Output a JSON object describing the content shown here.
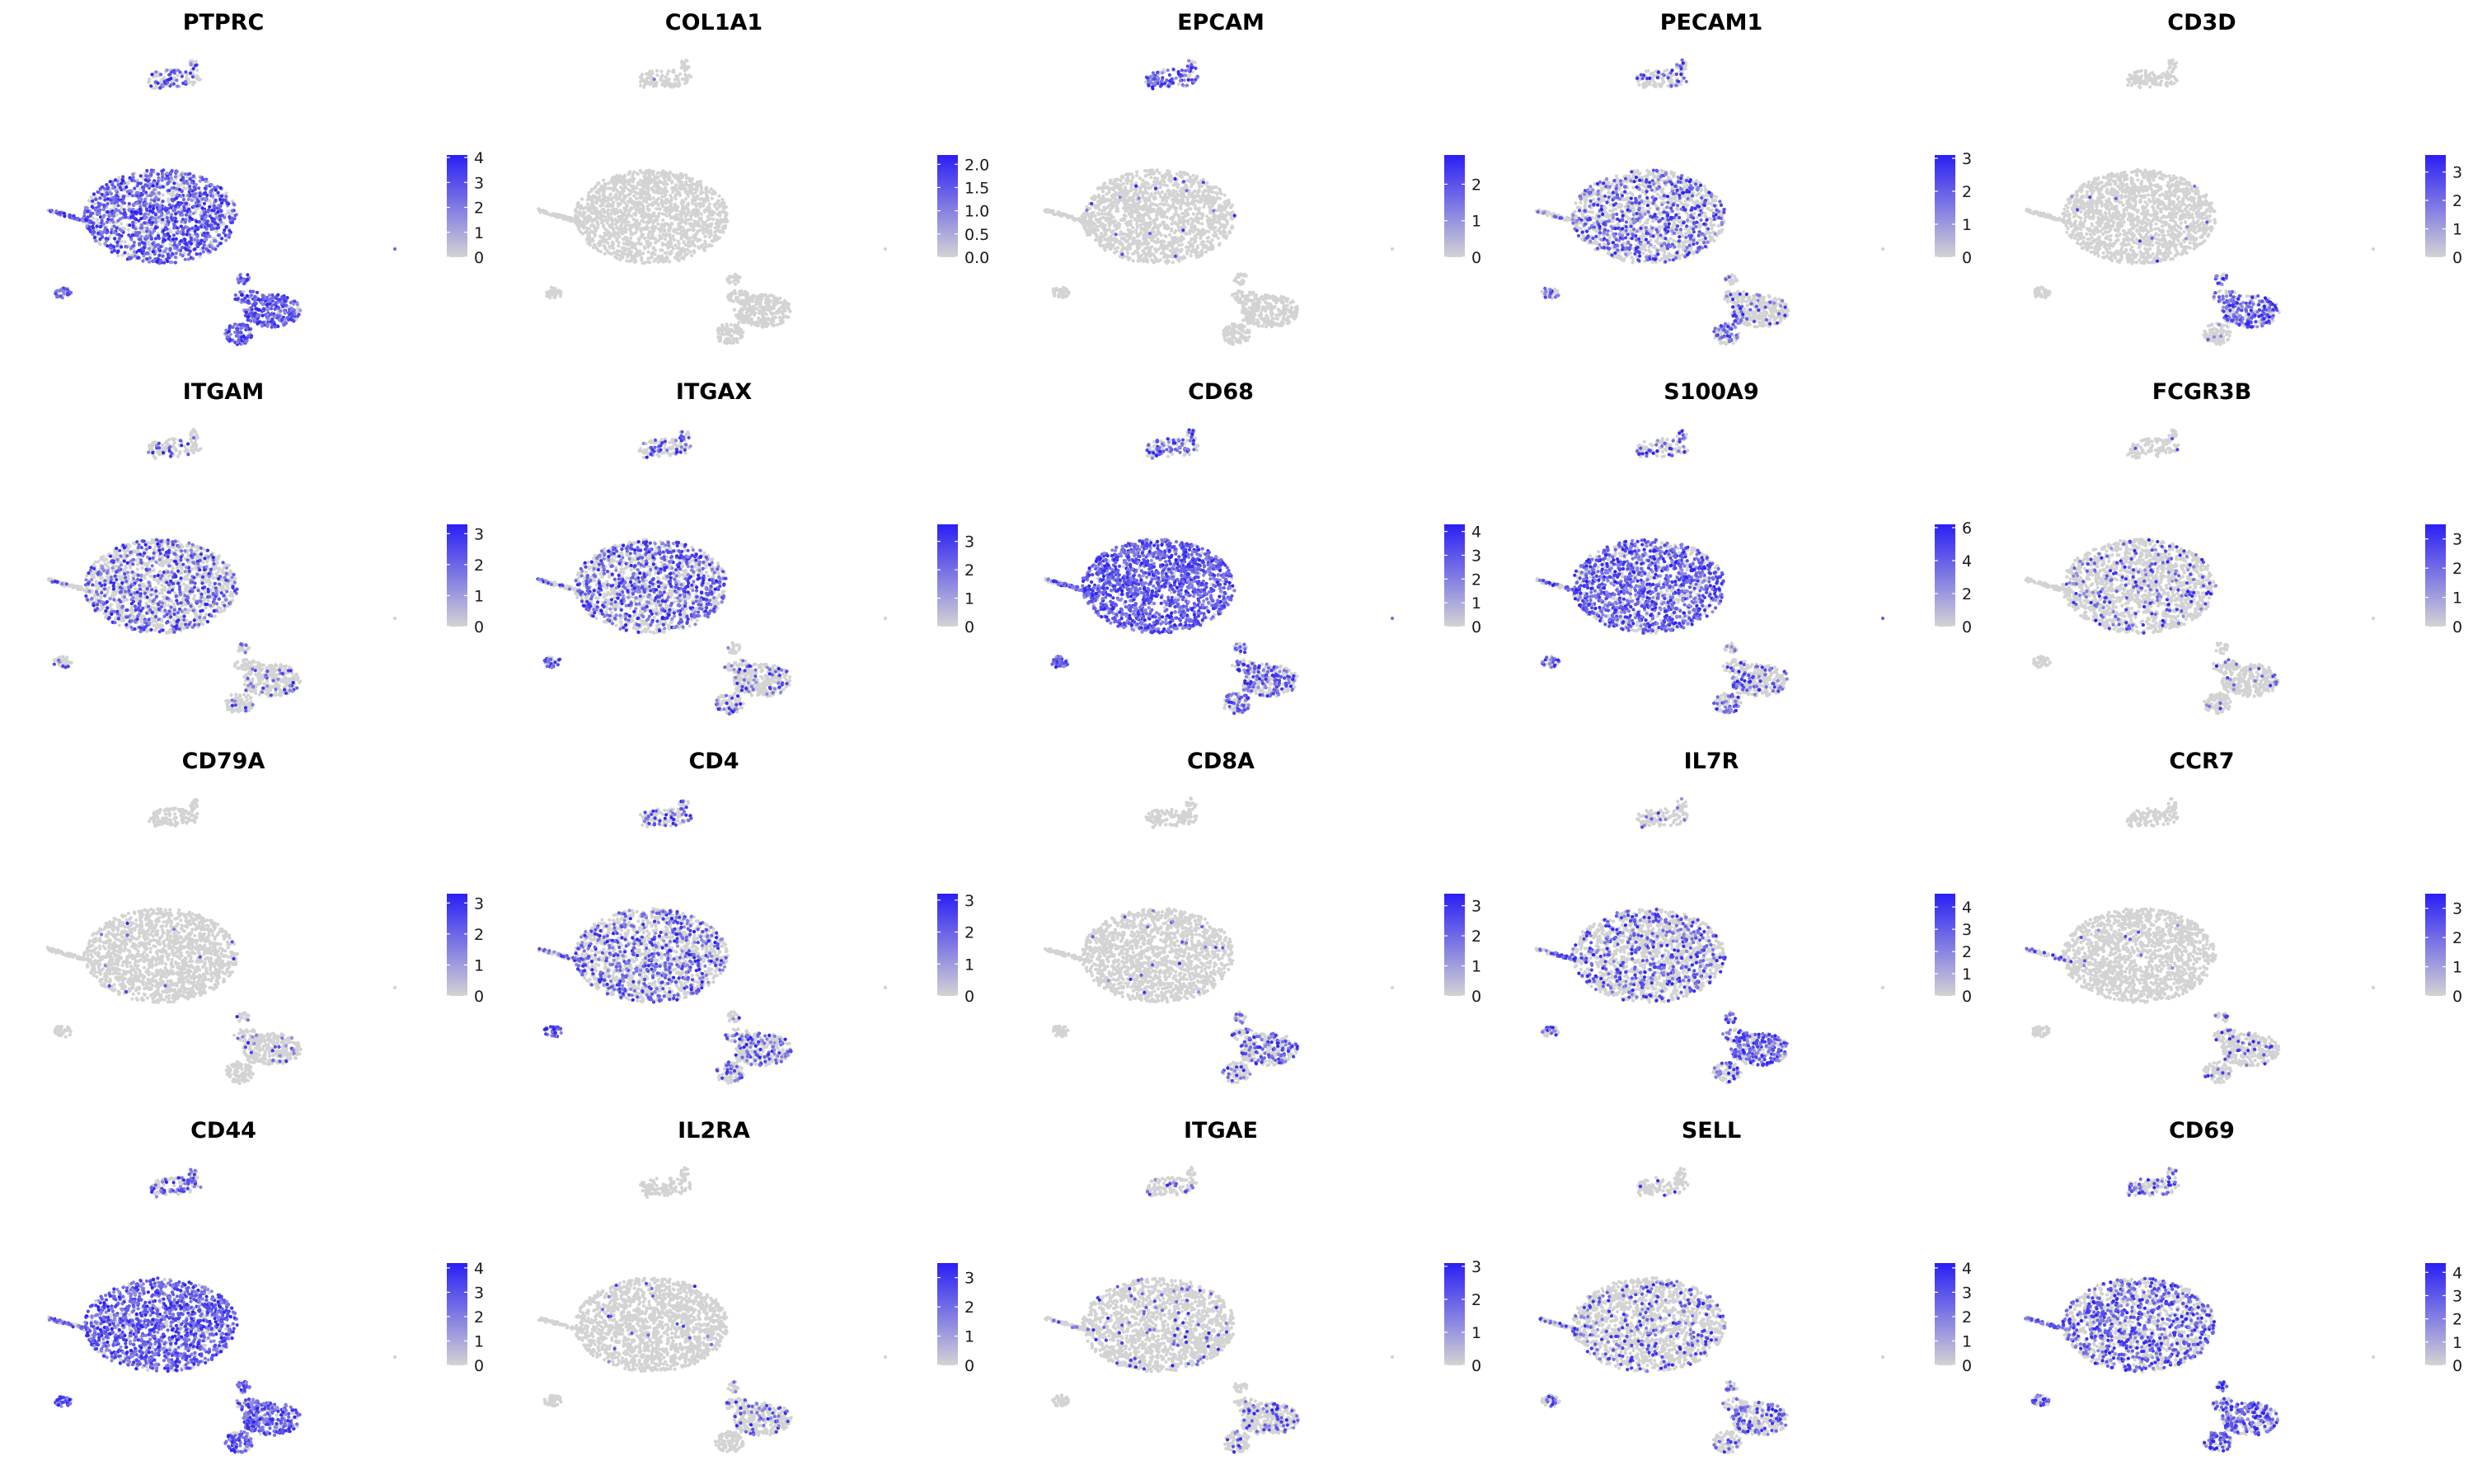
{
  "chart_data": {
    "type": "scatter",
    "plot_kind": "UMAP feature plots (gene expression)",
    "layout": {
      "rows": 4,
      "cols": 5
    },
    "color_scale": {
      "low": "#d3d3d3",
      "high": "#2a1ff5"
    },
    "grid": false,
    "legend_placement": "right",
    "panels": [
      {
        "title": "PTPRC",
        "max": 4.1,
        "ticks": [
          "0",
          "1",
          "2",
          "3",
          "4"
        ],
        "expression": {
          "main": 0.65,
          "tail": 0.45,
          "top_island": 0.35,
          "left_island": 0.7,
          "lower_cluster": 0.75,
          "bottom_island": 0.8,
          "outlier": 0.6
        }
      },
      {
        "title": "COL1A1",
        "max": 2.2,
        "ticks": [
          "0.0",
          "0.5",
          "1.0",
          "1.5",
          "2.0"
        ],
        "expression": {
          "main": 0.0,
          "tail": 0.0,
          "top_island": 0.04,
          "left_island": 0.0,
          "lower_cluster": 0.0,
          "bottom_island": 0.0,
          "outlier": 0.0
        }
      },
      {
        "title": "EPCAM",
        "max": 2.8,
        "ticks": [
          "0",
          "1",
          "2"
        ],
        "expression": {
          "main": 0.01,
          "tail": 0.0,
          "top_island": 0.7,
          "left_island": 0.0,
          "lower_cluster": 0.0,
          "bottom_island": 0.0,
          "outlier": 0.0
        }
      },
      {
        "title": "PECAM1",
        "max": 3.1,
        "ticks": [
          "0",
          "1",
          "2",
          "3"
        ],
        "expression": {
          "main": 0.3,
          "tail": 0.15,
          "top_island": 0.2,
          "left_island": 0.4,
          "lower_cluster": 0.12,
          "bottom_island": 0.3,
          "outlier": 0.0
        }
      },
      {
        "title": "CD3D",
        "max": 3.6,
        "ticks": [
          "0",
          "1",
          "2",
          "3"
        ],
        "expression": {
          "main": 0.01,
          "tail": 0.0,
          "top_island": 0.0,
          "left_island": 0.0,
          "lower_cluster": 0.55,
          "bottom_island": 0.05,
          "outlier": 0.0
        }
      },
      {
        "title": "ITGAM",
        "max": 3.3,
        "ticks": [
          "0",
          "1",
          "2",
          "3"
        ],
        "expression": {
          "main": 0.3,
          "tail": 0.05,
          "top_island": 0.1,
          "left_island": 0.15,
          "lower_cluster": 0.08,
          "bottom_island": 0.1,
          "outlier": 0.0
        }
      },
      {
        "title": "ITGAX",
        "max": 3.6,
        "ticks": [
          "0",
          "1",
          "2",
          "3"
        ],
        "expression": {
          "main": 0.4,
          "tail": 0.15,
          "top_island": 0.25,
          "left_island": 0.4,
          "lower_cluster": 0.15,
          "bottom_island": 0.2,
          "outlier": 0.0
        }
      },
      {
        "title": "CD68",
        "max": 4.3,
        "ticks": [
          "0",
          "1",
          "2",
          "3",
          "4"
        ],
        "expression": {
          "main": 0.9,
          "tail": 0.7,
          "top_island": 0.5,
          "left_island": 0.9,
          "lower_cluster": 0.35,
          "bottom_island": 0.5,
          "outlier": 0.8
        }
      },
      {
        "title": "S100A9",
        "max": 6.2,
        "ticks": [
          "0",
          "2",
          "4",
          "6"
        ],
        "expression": {
          "main": 0.6,
          "tail": 0.25,
          "top_island": 0.3,
          "left_island": 0.5,
          "lower_cluster": 0.2,
          "bottom_island": 0.4,
          "outlier": 0.9
        }
      },
      {
        "title": "FCGR3B",
        "max": 3.5,
        "ticks": [
          "0",
          "1",
          "2",
          "3"
        ],
        "expression": {
          "main": 0.12,
          "tail": 0.0,
          "top_island": 0.05,
          "left_island": 0.0,
          "lower_cluster": 0.05,
          "bottom_island": 0.05,
          "outlier": 0.0
        }
      },
      {
        "title": "CD79A",
        "max": 3.3,
        "ticks": [
          "0",
          "1",
          "2",
          "3"
        ],
        "expression": {
          "main": 0.005,
          "tail": 0.0,
          "top_island": 0.0,
          "left_island": 0.0,
          "lower_cluster": 0.06,
          "bottom_island": 0.0,
          "outlier": 0.0
        }
      },
      {
        "title": "CD4",
        "max": 3.2,
        "ticks": [
          "0",
          "1",
          "2",
          "3"
        ],
        "expression": {
          "main": 0.3,
          "tail": 0.3,
          "top_island": 0.3,
          "left_island": 0.5,
          "lower_cluster": 0.3,
          "bottom_island": 0.2,
          "outlier": 0.0
        }
      },
      {
        "title": "CD8A",
        "max": 3.4,
        "ticks": [
          "0",
          "1",
          "2",
          "3"
        ],
        "expression": {
          "main": 0.01,
          "tail": 0.0,
          "top_island": 0.0,
          "left_island": 0.0,
          "lower_cluster": 0.3,
          "bottom_island": 0.15,
          "outlier": 0.0
        }
      },
      {
        "title": "IL7R",
        "max": 4.6,
        "ticks": [
          "0",
          "1",
          "2",
          "3",
          "4"
        ],
        "expression": {
          "main": 0.25,
          "tail": 0.3,
          "top_island": 0.1,
          "left_island": 0.4,
          "lower_cluster": 0.55,
          "bottom_island": 0.3,
          "outlier": 0.0
        }
      },
      {
        "title": "CCR7",
        "max": 3.5,
        "ticks": [
          "0",
          "1",
          "2",
          "3"
        ],
        "expression": {
          "main": 0.01,
          "tail": 0.25,
          "top_island": 0.0,
          "left_island": 0.0,
          "lower_cluster": 0.1,
          "bottom_island": 0.05,
          "outlier": 0.0
        }
      },
      {
        "title": "CD44",
        "max": 4.2,
        "ticks": [
          "0",
          "1",
          "2",
          "3",
          "4"
        ],
        "expression": {
          "main": 0.75,
          "tail": 0.5,
          "top_island": 0.5,
          "left_island": 0.8,
          "lower_cluster": 0.7,
          "bottom_island": 0.8,
          "outlier": 0.6
        }
      },
      {
        "title": "IL2RA",
        "max": 3.5,
        "ticks": [
          "0",
          "1",
          "2",
          "3"
        ],
        "expression": {
          "main": 0.01,
          "tail": 0.0,
          "top_island": 0.0,
          "left_island": 0.0,
          "lower_cluster": 0.15,
          "bottom_island": 0.0,
          "outlier": 0.0
        }
      },
      {
        "title": "ITGAE",
        "max": 3.1,
        "ticks": [
          "0",
          "1",
          "2",
          "3"
        ],
        "expression": {
          "main": 0.05,
          "tail": 0.1,
          "top_island": 0.1,
          "left_island": 0.0,
          "lower_cluster": 0.15,
          "bottom_island": 0.1,
          "outlier": 0.0
        }
      },
      {
        "title": "SELL",
        "max": 4.2,
        "ticks": [
          "0",
          "1",
          "2",
          "3",
          "4"
        ],
        "expression": {
          "main": 0.15,
          "tail": 0.15,
          "top_island": 0.05,
          "left_island": 0.3,
          "lower_cluster": 0.25,
          "bottom_island": 0.15,
          "outlier": 0.0
        }
      },
      {
        "title": "CD69",
        "max": 4.4,
        "ticks": [
          "0",
          "1",
          "2",
          "3",
          "4"
        ],
        "expression": {
          "main": 0.4,
          "tail": 0.5,
          "top_island": 0.3,
          "left_island": 0.4,
          "lower_cluster": 0.5,
          "bottom_island": 0.5,
          "outlier": 0.0
        }
      }
    ]
  }
}
